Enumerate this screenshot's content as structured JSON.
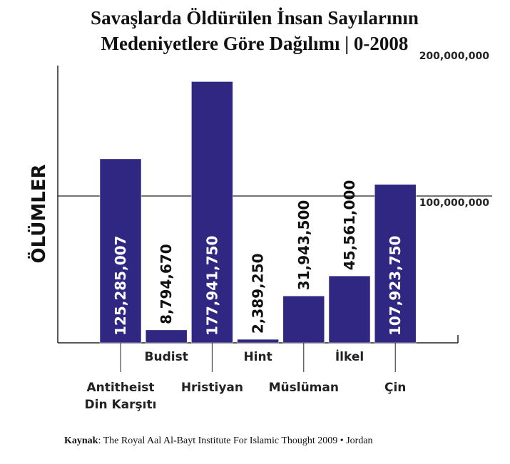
{
  "chart_data": {
    "type": "bar",
    "title": [
      "Savaşlarda Öldürülen İnsan Sayılarının",
      "Medeniyetlere Göre Dağılımı | 0-2008"
    ],
    "y_label": "ÖLÜMLER",
    "categories": [
      "Antitheist\nDin Karşıtı",
      "Budist",
      "Hristiyan",
      "Hint",
      "Müslüman",
      "İlkel",
      "Çin"
    ],
    "values": [
      125285007,
      8794670,
      177941750,
      2389250,
      31943500,
      45561000,
      107923750
    ],
    "value_labels": [
      "125,285,007",
      "8,794,670",
      "177,941,750",
      "2,389,250",
      "31,943,500",
      "45,561,000",
      "107,923,750"
    ],
    "color": "#302783",
    "ylim": [
      0,
      200000000
    ],
    "yticks": [
      {
        "value": 100000000,
        "label": "100,000,000"
      },
      {
        "value": 200000000,
        "label": "200,000,000"
      }
    ],
    "grid": true,
    "source_label": "Kaynak",
    "source_text": ": The Royal Aal Al-Bayt Institute For Islamic Thought 2009 • Jordan"
  }
}
